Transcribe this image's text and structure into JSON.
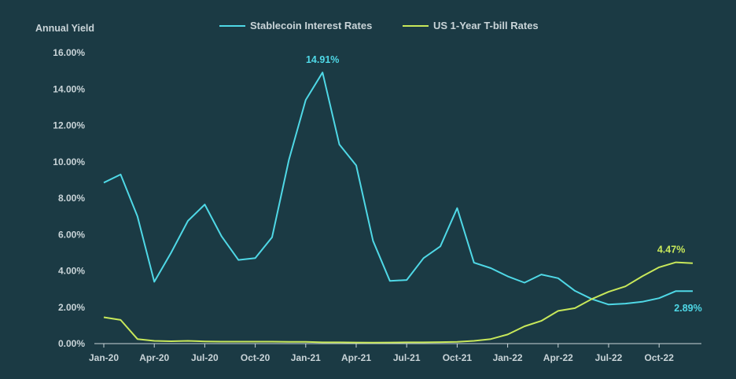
{
  "chart_data": {
    "type": "line",
    "title": "",
    "ylabel": "Annual Yield",
    "xlabel": "",
    "ylim": [
      0,
      16
    ],
    "yticks": [
      0,
      2,
      4,
      6,
      8,
      10,
      12,
      14,
      16
    ],
    "ytick_labels": [
      "0.00%",
      "2.00%",
      "4.00%",
      "6.00%",
      "8.00%",
      "10.00%",
      "12.00%",
      "14.00%",
      "16.00%"
    ],
    "x": [
      "Jan-20",
      "Feb-20",
      "Mar-20",
      "Apr-20",
      "May-20",
      "Jun-20",
      "Jul-20",
      "Aug-20",
      "Sep-20",
      "Oct-20",
      "Nov-20",
      "Dec-20",
      "Jan-21",
      "Feb-21",
      "Mar-21",
      "Apr-21",
      "May-21",
      "Jun-21",
      "Jul-21",
      "Aug-21",
      "Sep-21",
      "Oct-21",
      "Nov-21",
      "Dec-21",
      "Jan-22",
      "Feb-22",
      "Mar-22",
      "Apr-22",
      "May-22",
      "Jun-22",
      "Jul-22",
      "Aug-22",
      "Sep-22",
      "Oct-22",
      "Nov-22",
      "Dec-22"
    ],
    "xtick_labels": [
      "Jan-20",
      "Apr-20",
      "Jul-20",
      "Oct-20",
      "Jan-21",
      "Apr-21",
      "Jul-21",
      "Oct-21",
      "Jan-22",
      "Apr-22",
      "Jul-22",
      "Oct-22"
    ],
    "xtick_positions": [
      0,
      3,
      6,
      9,
      12,
      15,
      18,
      21,
      24,
      27,
      30,
      33
    ],
    "legend_position": "top-center",
    "grid": false,
    "series": [
      {
        "name": "Stablecoin Interest Rates",
        "color": "#4fd8e6",
        "values": [
          8.85,
          9.3,
          7.0,
          3.4,
          5.0,
          6.75,
          7.65,
          5.9,
          4.6,
          4.7,
          5.85,
          10.1,
          13.4,
          14.91,
          10.95,
          9.8,
          5.65,
          3.45,
          3.5,
          4.7,
          5.35,
          7.45,
          4.45,
          4.15,
          3.7,
          3.35,
          3.8,
          3.6,
          2.9,
          2.45,
          2.15,
          2.2,
          2.3,
          2.5,
          2.89,
          2.89
        ]
      },
      {
        "name": "US 1-Year T-bill Rates",
        "color": "#c8e85a",
        "values": [
          1.45,
          1.3,
          0.25,
          0.15,
          0.13,
          0.15,
          0.12,
          0.11,
          0.11,
          0.11,
          0.11,
          0.1,
          0.1,
          0.07,
          0.07,
          0.06,
          0.05,
          0.06,
          0.07,
          0.07,
          0.08,
          0.1,
          0.15,
          0.25,
          0.5,
          0.95,
          1.25,
          1.8,
          1.95,
          2.45,
          2.85,
          3.15,
          3.7,
          4.2,
          4.47,
          4.42
        ]
      }
    ],
    "annotations": [
      {
        "series": 0,
        "index": 13,
        "text": "14.91%",
        "position": "above"
      },
      {
        "series": 0,
        "index": 35,
        "text": "2.89%",
        "position": "below"
      },
      {
        "series": 1,
        "index": 34,
        "text": "4.47%",
        "position": "above"
      }
    ]
  }
}
